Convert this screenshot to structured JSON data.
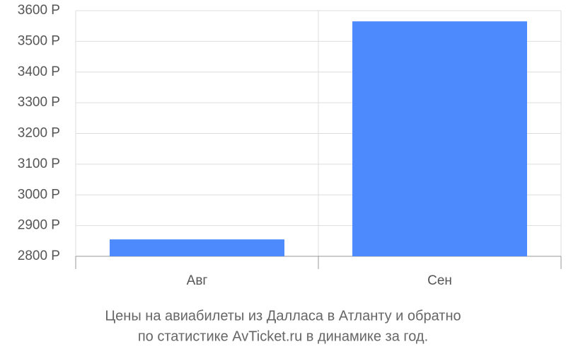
{
  "chart_data": {
    "type": "bar",
    "title_lines": [
      "Цены на авиабилеты из Далласа в Атланту и обратно",
      "по статистике AvTicket.ru в динамике за год."
    ],
    "categories": [
      "Авг",
      "Сен"
    ],
    "values": [
      2855,
      3565
    ],
    "color": "#4d8afd",
    "ylim": [
      2800,
      3600
    ],
    "yticks": [
      {
        "value": 2800,
        "label": "2800 Р"
      },
      {
        "value": 2900,
        "label": "2900 Р"
      },
      {
        "value": 3000,
        "label": "3000 Р"
      },
      {
        "value": 3100,
        "label": "3100 Р"
      },
      {
        "value": 3200,
        "label": "3200 Р"
      },
      {
        "value": 3300,
        "label": "3300 Р"
      },
      {
        "value": 3400,
        "label": "3400 Р"
      },
      {
        "value": 3500,
        "label": "3500 Р"
      },
      {
        "value": 3600,
        "label": "3600 Р"
      }
    ],
    "grid": true
  }
}
